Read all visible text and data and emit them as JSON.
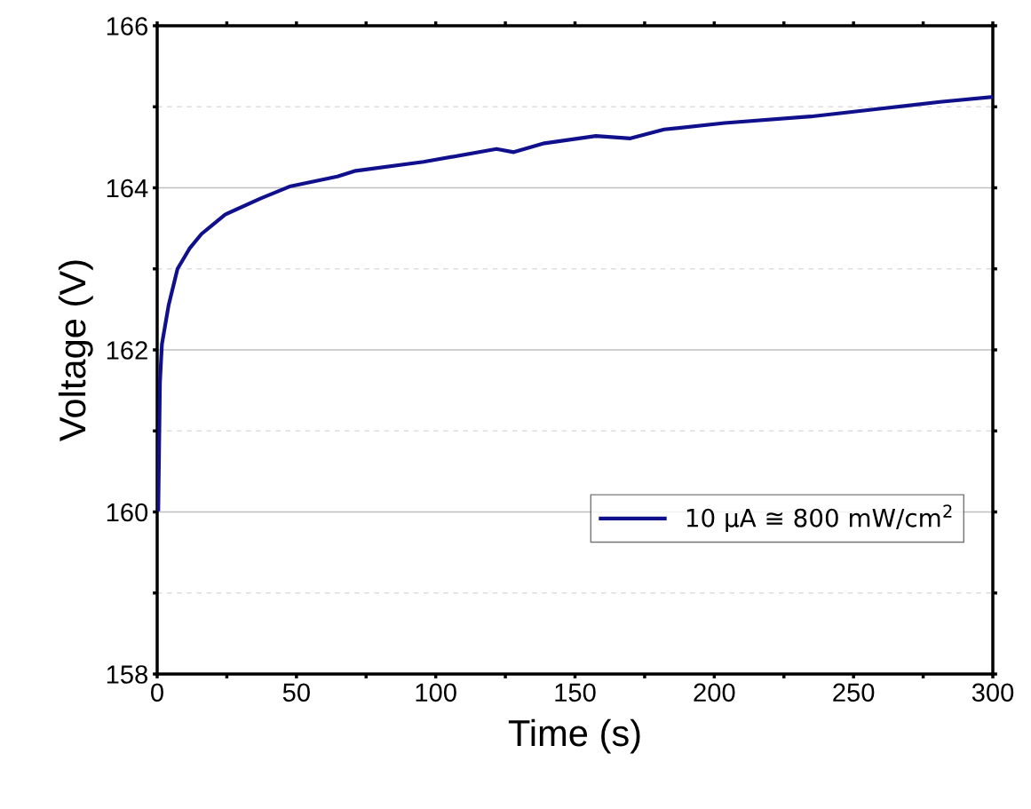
{
  "chart_data": {
    "type": "line",
    "xlabel": "Time (s)",
    "ylabel": "Voltage (V)",
    "x": [
      0.4,
      1.0,
      1.7,
      4.1,
      7.3,
      11.6,
      15.9,
      24.4,
      37.2,
      47.9,
      64.7,
      71.3,
      95.6,
      121.8,
      128,
      139,
      157.5,
      169.9,
      182,
      203.7,
      234.6,
      257.9,
      281,
      299.7
    ],
    "series": [
      {
        "name": "10 μA ≅ 800 mW/cm$^{2}$",
        "color": "#10108c",
        "values": [
          160.03,
          161.6,
          162.07,
          162.55,
          163.0,
          163.25,
          163.43,
          163.67,
          163.87,
          164.02,
          164.14,
          164.21,
          164.32,
          164.48,
          164.44,
          164.55,
          164.64,
          164.61,
          164.72,
          164.8,
          164.88,
          164.97,
          165.06,
          165.12
        ]
      }
    ],
    "xlim": [
      0,
      300
    ],
    "ylim": [
      158,
      166
    ],
    "xticks": [
      0,
      {
        "value": 25,
        "label": null
      },
      50,
      {
        "value": 75,
        "label": null
      },
      100,
      {
        "value": 125,
        "label": null
      },
      150,
      {
        "value": 175,
        "label": null
      },
      200,
      {
        "value": 225,
        "label": null
      },
      250,
      {
        "value": 275,
        "label": null
      },
      300
    ],
    "yticks": [
      158,
      {
        "value": 159,
        "label": null
      },
      160,
      {
        "value": 161,
        "label": null
      },
      162,
      {
        "value": 163,
        "label": null
      },
      164,
      {
        "value": 165,
        "label": null
      },
      166
    ],
    "grid": "y",
    "legend": "right",
    "marker": "none",
    "line_style": "solid"
  }
}
